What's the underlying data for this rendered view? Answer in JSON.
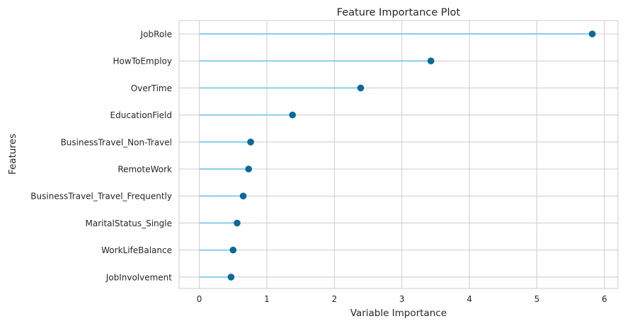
{
  "chart_data": {
    "type": "lollipop",
    "title": "Feature Importance Plot",
    "xlabel": "Variable Importance",
    "ylabel": "Features",
    "xlim": [
      -0.3,
      6.2
    ],
    "xticks": [
      0,
      1,
      2,
      3,
      4,
      5,
      6
    ],
    "grid": true,
    "categories": [
      "JobRole",
      "HowToEmploy",
      "OverTime",
      "EducationField",
      "BusinessTravel_Non-Travel",
      "RemoteWork",
      "BusinessTravel_Travel_Frequently",
      "MaritalStatus_Single",
      "WorkLifeBalance",
      "JobInvolvement"
    ],
    "values": [
      5.82,
      3.43,
      2.39,
      1.38,
      0.76,
      0.73,
      0.65,
      0.56,
      0.5,
      0.47
    ],
    "colors": {
      "stem": "#87ceeb",
      "marker": "#0a6a99",
      "grid": "#cccccc",
      "text": "#262626"
    }
  }
}
